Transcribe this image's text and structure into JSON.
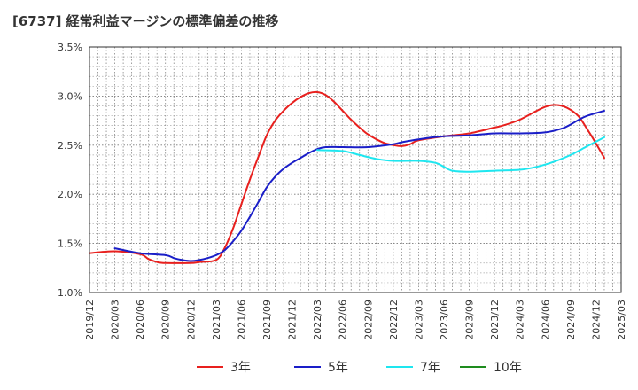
{
  "chart_data": {
    "type": "line",
    "title": "[6737]  経常利益マージンの標準偏差の推移",
    "xlabel": "",
    "ylabel": "",
    "ylim": [
      1.0,
      3.5
    ],
    "y_ticks": [
      "1.0%",
      "1.5%",
      "2.0%",
      "2.5%",
      "3.0%",
      "3.5%"
    ],
    "y_tick_values": [
      1.0,
      1.5,
      2.0,
      2.5,
      3.0,
      3.5
    ],
    "x_ticks": [
      "2019/12",
      "2020/03",
      "2020/06",
      "2020/09",
      "2020/12",
      "2021/03",
      "2021/06",
      "2021/09",
      "2021/12",
      "2022/03",
      "2022/06",
      "2022/09",
      "2022/12",
      "2023/03",
      "2023/06",
      "2023/09",
      "2023/12",
      "2024/03",
      "2024/06",
      "2024/09",
      "2024/12",
      "2025/03"
    ],
    "grid": true,
    "legend_position": "bottom",
    "series": [
      {
        "name": "3年",
        "color": "#e8201e",
        "points": [
          [
            "2019/12",
            1.4
          ],
          [
            "2020/03",
            1.42
          ],
          [
            "2020/06",
            1.39
          ],
          [
            "2020/07",
            1.34
          ],
          [
            "2020/08",
            1.31
          ],
          [
            "2020/09",
            1.3
          ],
          [
            "2020/12",
            1.3
          ],
          [
            "2021/01",
            1.31
          ],
          [
            "2021/03",
            1.33
          ],
          [
            "2021/04",
            1.45
          ],
          [
            "2021/05",
            1.65
          ],
          [
            "2021/06",
            1.9
          ],
          [
            "2021/07",
            2.15
          ],
          [
            "2021/08",
            2.38
          ],
          [
            "2021/09",
            2.6
          ],
          [
            "2021/10",
            2.75
          ],
          [
            "2021/11",
            2.85
          ],
          [
            "2021/12",
            2.93
          ],
          [
            "2022/01",
            2.99
          ],
          [
            "2022/02",
            3.03
          ],
          [
            "2022/03",
            3.04
          ],
          [
            "2022/04",
            3.01
          ],
          [
            "2022/05",
            2.94
          ],
          [
            "2022/06",
            2.85
          ],
          [
            "2022/07",
            2.76
          ],
          [
            "2022/08",
            2.68
          ],
          [
            "2022/09",
            2.61
          ],
          [
            "2022/10",
            2.56
          ],
          [
            "2022/11",
            2.52
          ],
          [
            "2022/12",
            2.5
          ],
          [
            "2023/01",
            2.49
          ],
          [
            "2023/02",
            2.51
          ],
          [
            "2023/03",
            2.55
          ],
          [
            "2023/06",
            2.59
          ],
          [
            "2023/09",
            2.62
          ],
          [
            "2023/12",
            2.68
          ],
          [
            "2024/01",
            2.7
          ],
          [
            "2024/03",
            2.76
          ],
          [
            "2024/05",
            2.85
          ],
          [
            "2024/06",
            2.89
          ],
          [
            "2024/07",
            2.91
          ],
          [
            "2024/08",
            2.9
          ],
          [
            "2024/09",
            2.86
          ],
          [
            "2024/10",
            2.79
          ],
          [
            "2024/11",
            2.66
          ],
          [
            "2024/12",
            2.52
          ],
          [
            "2025/01",
            2.37
          ]
        ]
      },
      {
        "name": "5年",
        "color": "#1a1ec8",
        "points": [
          [
            "2020/03",
            1.45
          ],
          [
            "2020/06",
            1.4
          ],
          [
            "2020/09",
            1.38
          ],
          [
            "2020/10",
            1.35
          ],
          [
            "2020/11",
            1.33
          ],
          [
            "2020/12",
            1.32
          ],
          [
            "2021/01",
            1.33
          ],
          [
            "2021/02",
            1.35
          ],
          [
            "2021/03",
            1.38
          ],
          [
            "2021/04",
            1.43
          ],
          [
            "2021/05",
            1.52
          ],
          [
            "2021/06",
            1.63
          ],
          [
            "2021/07",
            1.77
          ],
          [
            "2021/08",
            1.92
          ],
          [
            "2021/09",
            2.07
          ],
          [
            "2021/10",
            2.18
          ],
          [
            "2021/11",
            2.26
          ],
          [
            "2021/12",
            2.32
          ],
          [
            "2022/01",
            2.37
          ],
          [
            "2022/02",
            2.42
          ],
          [
            "2022/03",
            2.46
          ],
          [
            "2022/04",
            2.48
          ],
          [
            "2022/06",
            2.48
          ],
          [
            "2022/09",
            2.48
          ],
          [
            "2022/12",
            2.51
          ],
          [
            "2023/01",
            2.53
          ],
          [
            "2023/03",
            2.56
          ],
          [
            "2023/06",
            2.59
          ],
          [
            "2023/09",
            2.6
          ],
          [
            "2023/12",
            2.62
          ],
          [
            "2024/03",
            2.62
          ],
          [
            "2024/06",
            2.63
          ],
          [
            "2024/08",
            2.67
          ],
          [
            "2024/09",
            2.71
          ],
          [
            "2024/10",
            2.76
          ],
          [
            "2024/11",
            2.8
          ],
          [
            "2025/01",
            2.85
          ]
        ]
      },
      {
        "name": "7年",
        "color": "#1ee6ef",
        "points": [
          [
            "2022/03",
            2.45
          ],
          [
            "2022/06",
            2.44
          ],
          [
            "2022/08",
            2.4
          ],
          [
            "2022/10",
            2.36
          ],
          [
            "2022/12",
            2.34
          ],
          [
            "2023/03",
            2.34
          ],
          [
            "2023/05",
            2.32
          ],
          [
            "2023/06",
            2.28
          ],
          [
            "2023/07",
            2.24
          ],
          [
            "2023/09",
            2.23
          ],
          [
            "2023/12",
            2.24
          ],
          [
            "2024/03",
            2.25
          ],
          [
            "2024/05",
            2.28
          ],
          [
            "2024/07",
            2.33
          ],
          [
            "2024/09",
            2.4
          ],
          [
            "2024/11",
            2.49
          ],
          [
            "2025/01",
            2.58
          ]
        ]
      },
      {
        "name": "10年",
        "color": "#1e8c1e",
        "points": []
      }
    ]
  }
}
